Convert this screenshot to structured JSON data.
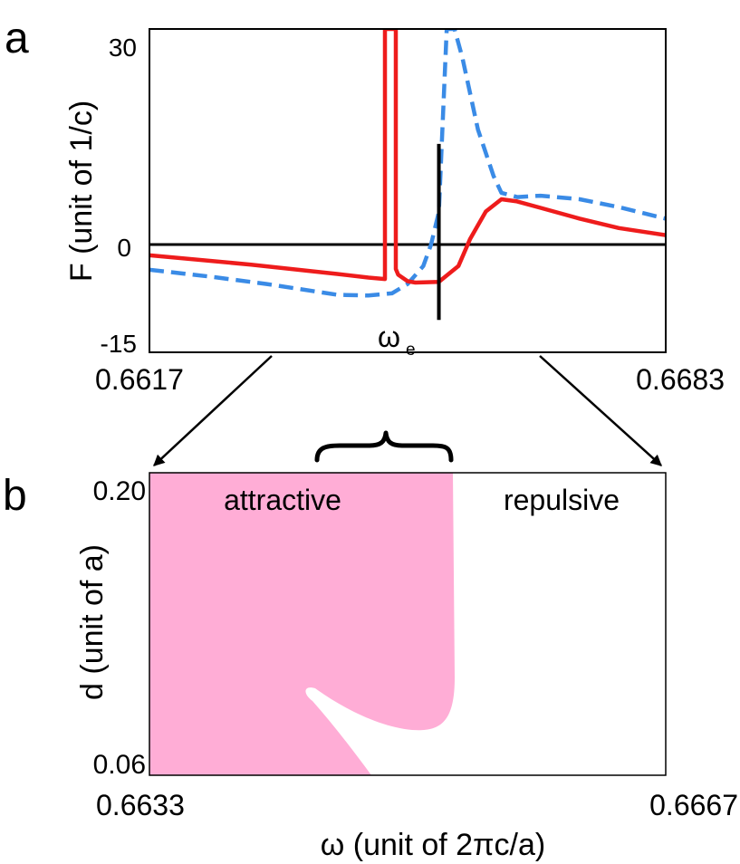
{
  "panel_a": {
    "label": "a",
    "chart_data": {
      "type": "line",
      "ylabel": "F (unit of 1/c)",
      "x_ticks": [
        "0.6617",
        "0.6683"
      ],
      "y_ticks": [
        "30",
        "0",
        "-15"
      ],
      "xlim": [
        0.6617,
        0.6683
      ],
      "ylim": [
        -15,
        30
      ],
      "annotation": {
        "text": "ω",
        "subscript": "e",
        "x": 0.6654,
        "y_from": -10.5,
        "y_to": 14
      },
      "zero_line": 0,
      "series": [
        {
          "name": "solid",
          "color": "#ee1c1c",
          "style": "solid",
          "x": [
            0.6617,
            0.663,
            0.6641,
            0.6645,
            0.66471,
            0.66471,
            0.66478,
            0.66485,
            0.66485,
            0.66488,
            0.665,
            0.6651,
            0.6654,
            0.66565,
            0.6658,
            0.666,
            0.6662,
            0.6664,
            0.6667,
            0.6672,
            0.6677,
            0.6683
          ],
          "y": [
            -1.5,
            -2.8,
            -4.1,
            -4.6,
            -4.8,
            30,
            30,
            30,
            -3.4,
            -4.2,
            -5.1,
            -5.3,
            -5.2,
            -3.0,
            0.8,
            4.6,
            6.3,
            6.0,
            5.1,
            3.6,
            2.3,
            1.3
          ]
        },
        {
          "name": "dashed",
          "color": "#3a8be6",
          "style": "dashed",
          "x": [
            0.6617,
            0.6625,
            0.6632,
            0.6641,
            0.6645,
            0.6648,
            0.665,
            0.6652,
            0.6653,
            0.6654,
            0.6655,
            0.6656,
            0.6657,
            0.6659,
            0.6661,
            0.6662,
            0.6664,
            0.6667,
            0.6672,
            0.6677,
            0.6683
          ],
          "y": [
            -3.5,
            -4.5,
            -5.5,
            -7.0,
            -7.1,
            -6.8,
            -5.5,
            -3.0,
            0.0,
            4.5,
            30,
            30,
            26,
            16.0,
            9.5,
            7.2,
            6.6,
            6.8,
            6.3,
            5.2,
            3.6
          ]
        }
      ]
    }
  },
  "panel_b": {
    "label": "b",
    "chart_data": {
      "type": "heatmap",
      "xlabel": "ω (unit of 2πc/a)",
      "ylabel": "d (unit of a)",
      "x_ticks": [
        "0.6633",
        "0.6667"
      ],
      "y_ticks": [
        "0.20",
        "0.06"
      ],
      "xlim": [
        0.6633,
        0.6667
      ],
      "ylim": [
        0.06,
        0.2
      ],
      "regions": [
        {
          "label": "attractive",
          "color": "#ffadd6"
        },
        {
          "label": "repulsive",
          "color": "#ffffff"
        }
      ]
    }
  }
}
